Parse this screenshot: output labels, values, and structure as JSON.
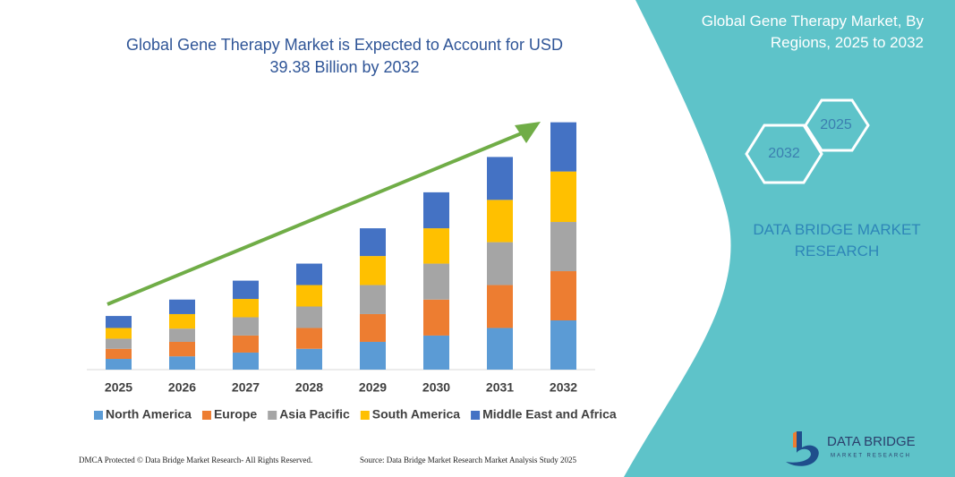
{
  "chart_data": {
    "type": "bar",
    "stacked": true,
    "title": "Global Gene Therapy Market is Expected to Account for USD 39.38 Billion by 2032",
    "categories": [
      "2025",
      "2026",
      "2027",
      "2028",
      "2029",
      "2030",
      "2031",
      "2032"
    ],
    "series": [
      {
        "name": "North America",
        "color": "#5b9bd5",
        "values": [
          1.7,
          2.1,
          2.7,
          3.3,
          4.4,
          5.4,
          6.6,
          7.8
        ]
      },
      {
        "name": "Europe",
        "color": "#ed7d31",
        "values": [
          1.6,
          2.3,
          2.7,
          3.3,
          4.4,
          5.7,
          6.8,
          7.8
        ]
      },
      {
        "name": "Asia Pacific",
        "color": "#a5a5a5",
        "values": [
          1.6,
          2.1,
          2.9,
          3.4,
          4.6,
          5.7,
          6.8,
          7.8
        ]
      },
      {
        "name": "South America",
        "color": "#ffc000",
        "values": [
          1.7,
          2.3,
          2.9,
          3.4,
          4.6,
          5.6,
          6.7,
          8.0
        ]
      },
      {
        "name": "Middle East and Africa",
        "color": "#4472c4",
        "values": [
          1.9,
          2.3,
          2.9,
          3.4,
          4.4,
          5.7,
          6.8,
          7.8
        ]
      }
    ],
    "ylim": [
      0,
      40
    ],
    "legend": "bottom"
  },
  "panel": {
    "title": "Global Gene Therapy Market, By Regions, 2025 to 2032",
    "hex_small": "2025",
    "hex_large": "2032",
    "brand": "DATA BRIDGE MARKET RESEARCH"
  },
  "footer": {
    "left": "DMCA Protected © Data Bridge Market Research- All Rights Reserved.",
    "right": "Source: Data Bridge Market Research Market Analysis Study 2025"
  },
  "logo": {
    "name": "DATA BRIDGE",
    "tagline": "MARKET RESEARCH"
  }
}
